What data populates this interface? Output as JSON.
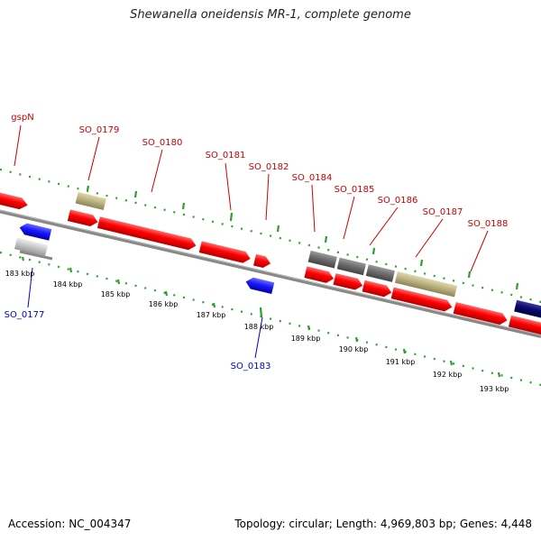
{
  "title": "Shewanella oneidensis MR-1, complete genome",
  "footer": {
    "accession": "Accession: NC_004347",
    "summary": "Topology: circular; Length: 4,969,803 bp; Genes: 4,448"
  },
  "colors": {
    "forward_gene": "#ff0000",
    "reverse_gene": "#1a1aff",
    "other_gene": "#bdb582",
    "grey_gene": "#6e6e6e",
    "light_grey_gene": "#c8c8c8",
    "navy_gene": "#0a0a6e",
    "backbone": "#888888",
    "dotted_track": "#2ca02c",
    "forward_label": "#cc0000",
    "reverse_label": "#0000cc"
  },
  "ticks": [
    "183 kbp",
    "184 kbp",
    "185 kbp",
    "186 kbp",
    "187 kbp",
    "188 kbp",
    "189 kbp",
    "190 kbp",
    "191 kbp",
    "192 kbp",
    "193 kbp"
  ],
  "forward_labels": [
    "gspN",
    "SO_0179",
    "SO_0180",
    "SO_0181",
    "SO_0182",
    "SO_0184",
    "SO_0185",
    "SO_0186",
    "SO_0187",
    "SO_0188"
  ],
  "reverse_labels": [
    "SO_0177",
    "SO_0183"
  ]
}
